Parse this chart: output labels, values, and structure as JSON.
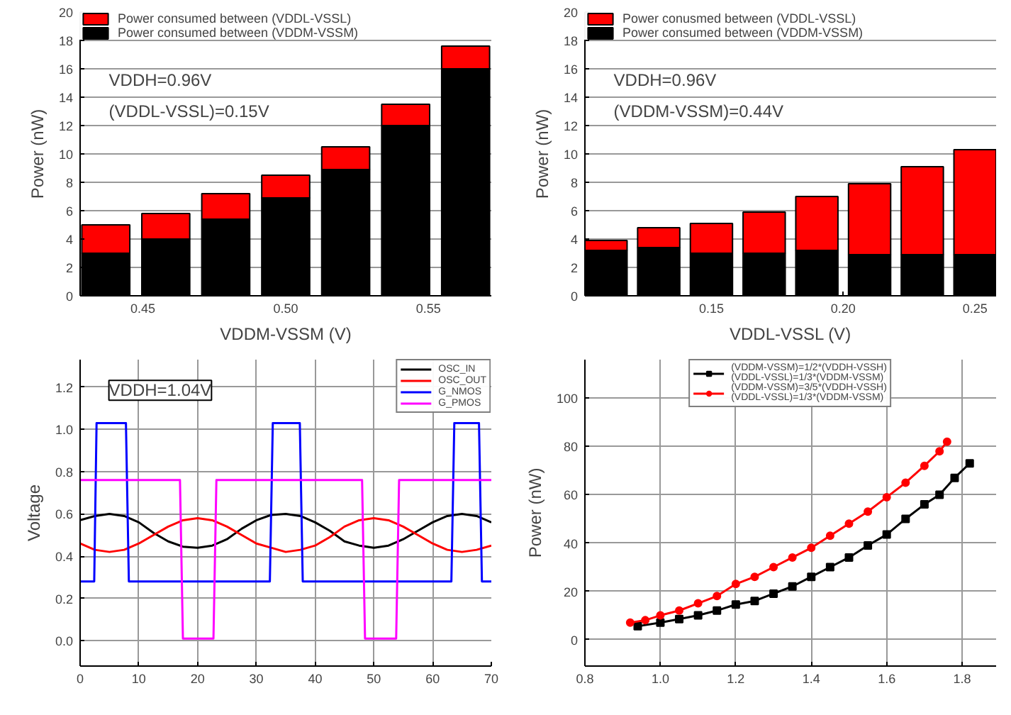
{
  "chart_data": [
    {
      "type": "bar",
      "stacked": true,
      "x": [
        0.437,
        0.458,
        0.479,
        0.5,
        0.521,
        0.542,
        0.563
      ],
      "xlabel": "VDDM-VSSM (V)",
      "ylabel": "Power (nW)",
      "xlim": [
        0.428,
        0.572
      ],
      "xticks": [
        0.45,
        {
          "value": 0.5,
          "label": "0.50"
        },
        0.55
      ],
      "ylim": [
        0,
        20
      ],
      "yticks": [
        0,
        2,
        4,
        6,
        8,
        10,
        12,
        14,
        16,
        18,
        20
      ],
      "grid": "y",
      "legend": "top left",
      "annotations": [
        "VDDH=0.96V",
        "(VDDL-VSSL)=0.15V"
      ],
      "series": [
        {
          "name": "Power consumed between (VDDM-VSSM)",
          "color": "#000000",
          "values": [
            3.0,
            4.0,
            5.4,
            6.9,
            8.9,
            12.0,
            16.0
          ]
        },
        {
          "name": "Power consumed between (VDDL-VSSL)",
          "color": "#ff0000",
          "values": [
            2.0,
            1.8,
            1.8,
            1.6,
            1.6,
            1.5,
            1.6
          ]
        }
      ]
    },
    {
      "type": "bar",
      "stacked": true,
      "x": [
        0.11,
        0.13,
        0.15,
        0.17,
        0.19,
        0.21,
        0.23,
        0.25
      ],
      "xlabel": "VDDL-VSSL (V)",
      "ylabel": "Power (nW)",
      "xlim": [
        0.102,
        0.258
      ],
      "xticks": [
        0.15,
        {
          "value": 0.2,
          "label": "0.20"
        },
        0.25
      ],
      "ylim": [
        0,
        20
      ],
      "yticks": [
        0,
        2,
        4,
        6,
        8,
        10,
        12,
        14,
        16,
        18,
        20
      ],
      "grid": "y",
      "legend": "top left",
      "annotations": [
        "VDDH=0.96V",
        "(VDDM-VSSM)=0.44V"
      ],
      "series": [
        {
          "name": "Power consumed between (VDDM-VSSM)",
          "color": "#000000",
          "values": [
            3.2,
            3.4,
            3.0,
            3.0,
            3.2,
            2.9,
            2.9,
            2.9
          ]
        },
        {
          "name": "Power conusmed between (VDDL-VSSL)",
          "color": "#ff0000",
          "values": [
            0.7,
            1.4,
            2.1,
            2.9,
            3.8,
            5.0,
            6.2,
            7.4
          ]
        }
      ]
    },
    {
      "type": "line",
      "ylabel": "Voltage",
      "xlim": [
        0,
        70
      ],
      "xticks": [
        0,
        10,
        20,
        30,
        40,
        50,
        60,
        70
      ],
      "ylim": [
        -0.12,
        1.33
      ],
      "yticks": [
        {
          "value": 0,
          "label": "0.0"
        },
        0.2,
        0.4,
        0.6,
        0.8,
        {
          "value": 1.0,
          "label": "1.0"
        },
        1.2
      ],
      "grid": true,
      "legend": "top right",
      "annotations": [
        "VDDH=1.04V"
      ],
      "series": [
        {
          "name": "OSC_IN",
          "color": "#000000",
          "x": [
            0,
            2.5,
            5,
            7.5,
            10,
            12.5,
            15,
            17.5,
            20,
            22.5,
            25,
            27.5,
            30,
            32.5,
            35,
            37.5,
            40,
            42.5,
            45,
            47.5,
            50,
            52.5,
            55,
            57.5,
            60,
            62.5,
            65,
            67.5,
            70
          ],
          "values": [
            0.57,
            0.59,
            0.6,
            0.59,
            0.56,
            0.51,
            0.47,
            0.445,
            0.44,
            0.45,
            0.48,
            0.53,
            0.57,
            0.595,
            0.6,
            0.59,
            0.56,
            0.52,
            0.47,
            0.45,
            0.44,
            0.45,
            0.48,
            0.52,
            0.56,
            0.59,
            0.6,
            0.59,
            0.56
          ]
        },
        {
          "name": "OSC_OUT",
          "color": "#ff0000",
          "x": [
            0,
            2.5,
            5,
            7.5,
            10,
            12.5,
            15,
            17.5,
            20,
            22.5,
            25,
            27.5,
            30,
            32.5,
            35,
            37.5,
            40,
            42.5,
            45,
            47.5,
            50,
            52.5,
            55,
            57.5,
            60,
            62.5,
            65,
            67.5,
            70
          ],
          "values": [
            0.46,
            0.43,
            0.42,
            0.43,
            0.46,
            0.5,
            0.54,
            0.57,
            0.58,
            0.57,
            0.54,
            0.5,
            0.46,
            0.44,
            0.42,
            0.43,
            0.45,
            0.49,
            0.54,
            0.57,
            0.58,
            0.57,
            0.54,
            0.5,
            0.46,
            0.43,
            0.42,
            0.43,
            0.45
          ]
        },
        {
          "name": "G_NMOS",
          "color": "#0000ff",
          "x": [
            0,
            2.4,
            2.8,
            7.8,
            8.3,
            32.3,
            32.8,
            37.4,
            37.9,
            63.2,
            63.7,
            67.9,
            68.4,
            70
          ],
          "values": [
            0.28,
            0.28,
            1.03,
            1.03,
            0.28,
            0.28,
            1.03,
            1.03,
            0.28,
            0.28,
            1.03,
            1.03,
            0.28,
            0.28
          ]
        },
        {
          "name": "G_PMOS",
          "color": "#ff00ff",
          "x": [
            0,
            17.0,
            17.5,
            22.7,
            23.2,
            48.0,
            48.5,
            53.8,
            54.3,
            70
          ],
          "values": [
            0.76,
            0.76,
            0.01,
            0.01,
            0.76,
            0.76,
            0.01,
            0.01,
            0.76,
            0.76
          ]
        }
      ]
    },
    {
      "type": "line",
      "ylabel": "Power (nW)",
      "xlim": [
        0.8,
        1.89
      ],
      "xticks": [
        0.8,
        {
          "value": 1.0,
          "label": "1.0"
        },
        1.2,
        1.4,
        1.6,
        1.8
      ],
      "ylim": [
        -11,
        116
      ],
      "yticks": [
        0,
        20,
        40,
        60,
        80,
        100
      ],
      "grid": true,
      "legend": "top",
      "series": [
        {
          "name": "(VDDM-VSSM)=1/2*(VDDH-VSSH)\n(VDDL-VSSL)=1/3*(VDDM-VSSM)",
          "color": "#000000",
          "marker": "square",
          "x": [
            0.94,
            1.0,
            1.05,
            1.1,
            1.15,
            1.2,
            1.25,
            1.3,
            1.35,
            1.4,
            1.45,
            1.5,
            1.55,
            1.6,
            1.65,
            1.7,
            1.74,
            1.78,
            1.82
          ],
          "values": [
            5.5,
            7,
            8.5,
            10,
            12,
            14.5,
            16,
            19,
            22,
            26,
            30,
            34,
            39,
            43.5,
            50,
            56,
            60,
            67,
            73
          ]
        },
        {
          "name": "(VDDM-VSSM)=3/5*(VDDH-VSSH)\n(VDDL-VSSL)=1/3*(VDDM-VSSM)",
          "color": "#ff0000",
          "marker": "circle",
          "x": [
            0.92,
            0.96,
            1.0,
            1.05,
            1.1,
            1.15,
            1.2,
            1.25,
            1.3,
            1.35,
            1.4,
            1.45,
            1.5,
            1.55,
            1.6,
            1.65,
            1.7,
            1.74,
            1.76
          ],
          "values": [
            7,
            8,
            10,
            12,
            15,
            18,
            23,
            26,
            30,
            34,
            38,
            43,
            48,
            53,
            59,
            65,
            72,
            78,
            82
          ]
        }
      ]
    }
  ]
}
